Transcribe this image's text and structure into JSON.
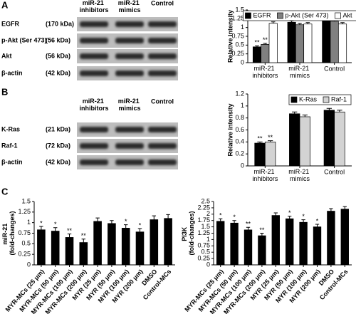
{
  "panels": [
    "A",
    "B",
    "C"
  ],
  "blots": [
    {
      "lanes": [
        "miR-21 inhibitors",
        "miR-21 mimics",
        "Control"
      ],
      "rows": [
        {
          "protein": "EGFR",
          "size": "(170 kDa)"
        },
        {
          "protein": "p-Akt (Ser 473)",
          "size": "(56 kDa)"
        },
        {
          "protein": "Akt",
          "size": "(56 kDa)"
        },
        {
          "protein": "β-actin",
          "size": "(42 kDa)"
        }
      ]
    },
    {
      "lanes": [
        "miR-21 inhibitors",
        "miR-21 mimics",
        "Control"
      ],
      "rows": [
        {
          "protein": "K-Ras",
          "size": "(21 kDa)"
        },
        {
          "protein": "Raf-1",
          "size": "(72 kDa)"
        },
        {
          "protein": "β-actin",
          "size": "(42 kDa)"
        }
      ]
    }
  ],
  "chart_data": [
    {
      "type": "bar",
      "ylabel": "Relative intensity",
      "legend": "top",
      "categories": [
        "miR-21 inhibitors",
        "miR-21 mimics",
        "Control"
      ],
      "ylim": [
        0,
        1.5
      ],
      "yticks": [
        0,
        0.25,
        0.5,
        0.75,
        1,
        1.25,
        1.5
      ],
      "series": [
        {
          "name": "EGFR",
          "color": "#000000",
          "values": [
            0.45,
            1.15,
            1.25
          ],
          "errors": [
            0.03,
            0.04,
            0.04
          ],
          "markers": [
            "**",
            null,
            null
          ]
        },
        {
          "name": "p-Akt (Ser 473)",
          "color": "#808080",
          "values": [
            0.52,
            1.08,
            1.18
          ],
          "errors": [
            0.03,
            0.04,
            0.04
          ],
          "markers": [
            "**",
            null,
            null
          ]
        },
        {
          "name": "Akt",
          "color": "#ffffff",
          "values": [
            1.12,
            1.1,
            1.1
          ],
          "errors": [
            0.04,
            0.04,
            0.04
          ],
          "markers": [
            null,
            null,
            null
          ]
        }
      ]
    },
    {
      "type": "bar",
      "ylabel": "Relative intensity",
      "legend": "top-right",
      "categories": [
        "miR-21 inhibitors",
        "miR-21 mimics",
        "Control"
      ],
      "ylim": [
        0,
        1.2
      ],
      "yticks": [
        0,
        0.2,
        0.4,
        0.6,
        0.8,
        1,
        1.2
      ],
      "series": [
        {
          "name": "K-Ras",
          "color": "#000000",
          "values": [
            0.38,
            0.87,
            0.93
          ],
          "errors": [
            0.02,
            0.03,
            0.03
          ],
          "markers": [
            "**",
            null,
            null
          ]
        },
        {
          "name": "Raf-1",
          "color": "#d3d3d3",
          "values": [
            0.4,
            0.82,
            0.9
          ],
          "errors": [
            0.02,
            0.03,
            0.03
          ],
          "markers": [
            "**",
            null,
            null
          ]
        }
      ]
    },
    {
      "type": "bar",
      "ylabel": "miR-21 (fold-changes)",
      "color": "#000000",
      "categories": [
        "MYR-MCs (25 μm)",
        "MYR-MCs (50 μm)",
        "MYR-MCs (100 μm)",
        "MYR-MCs (200 μm)",
        "MYR (25 μm)",
        "MYR (50 μm)",
        "MYR (100 μm)",
        "MYR (200 μm)",
        "DMSO",
        "Control-MCs"
      ],
      "ylim": [
        0,
        1.5
      ],
      "yticks": [
        0,
        0.25,
        0.5,
        0.75,
        1,
        1.25,
        1.5
      ],
      "values": [
        0.83,
        0.8,
        0.65,
        0.53,
        1.03,
        0.98,
        0.87,
        0.78,
        1.07,
        1.1
      ],
      "errors": [
        0.08,
        0.08,
        0.08,
        0.08,
        0.08,
        0.07,
        0.08,
        0.08,
        0.09,
        0.09
      ],
      "markers": [
        "*",
        "*",
        "**",
        "**",
        null,
        null,
        "*",
        "*",
        null,
        null
      ]
    },
    {
      "type": "bar",
      "ylabel": "PI3K (fold-changes)",
      "color": "#000000",
      "categories": [
        "MYR-MCs (25 μm)",
        "MYR-MCs (50 μm)",
        "MYR-MCs (100 μm)",
        "MYR-MCs (200 μm)",
        "MYR (25 μm)",
        "MYR (50 μm)",
        "MYR (100 μm)",
        "MYR (200 μm)",
        "DMSO",
        "Control-MCs"
      ],
      "ylim": [
        0,
        2.5
      ],
      "yticks": [
        0,
        0.25,
        0.5,
        0.75,
        1,
        1.25,
        1.5,
        1.75,
        2,
        2.25,
        2.5
      ],
      "values": [
        1.72,
        1.65,
        1.38,
        1.15,
        1.95,
        1.82,
        1.68,
        1.5,
        2.12,
        2.2
      ],
      "errors": [
        0.1,
        0.1,
        0.1,
        0.1,
        0.1,
        0.1,
        0.1,
        0.1,
        0.1,
        0.1
      ],
      "markers": [
        "*",
        "*",
        "**",
        "**",
        null,
        "*",
        "*",
        "*",
        null,
        null
      ]
    }
  ]
}
